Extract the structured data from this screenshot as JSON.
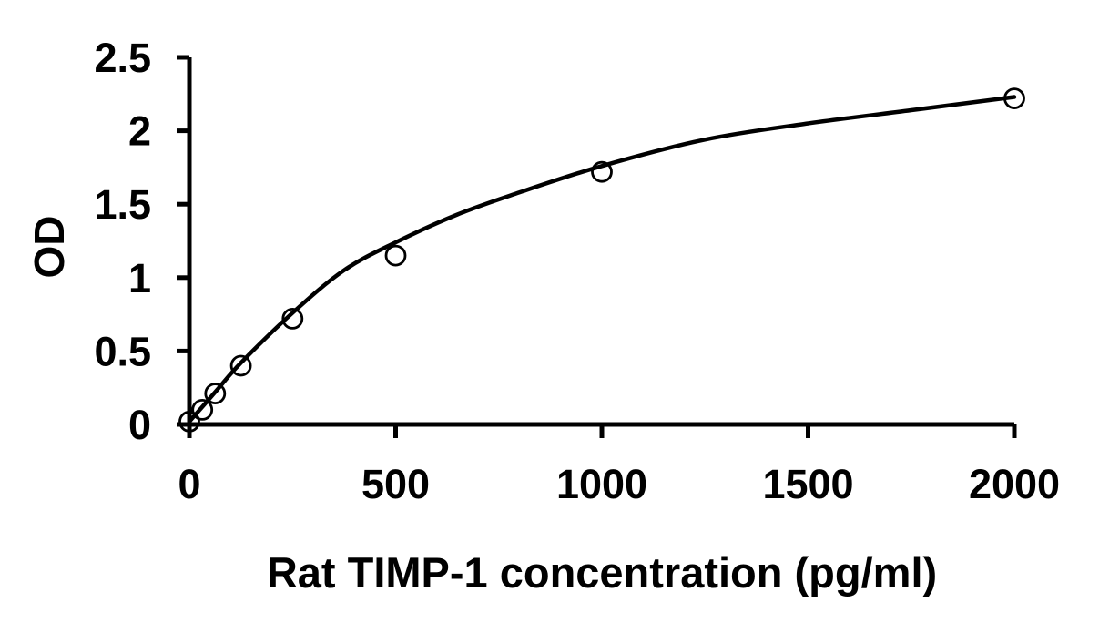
{
  "chart_data": {
    "type": "scatter",
    "title": "",
    "xlabel": "Rat TIMP-1 concentration (pg/ml)",
    "ylabel": "OD",
    "xlim": [
      0,
      2000
    ],
    "ylim": [
      0,
      2.5
    ],
    "x_ticks": [
      0,
      500,
      1000,
      1500,
      2000
    ],
    "x_tick_labels": [
      "0",
      "500",
      "1000",
      "1500",
      "2000"
    ],
    "y_ticks": [
      0,
      0.5,
      1,
      1.5,
      2,
      2.5
    ],
    "y_tick_labels": [
      "0",
      "0.5",
      "1",
      "1.5",
      "2",
      "2.5"
    ],
    "grid": false,
    "legend": "none",
    "series": [
      {
        "name": "standard-points",
        "type": "scatter",
        "marker": "open-circle",
        "x": [
          0,
          31.25,
          62.5,
          125,
          250,
          500,
          1000,
          2000
        ],
        "y": [
          0.02,
          0.1,
          0.21,
          0.4,
          0.72,
          1.15,
          1.72,
          2.22
        ]
      },
      {
        "name": "fitted-curve",
        "type": "line",
        "x": [
          0,
          62.5,
          125,
          250,
          375,
          500,
          650,
          800,
          1000,
          1250,
          1500,
          1750,
          2000
        ],
        "y": [
          0.02,
          0.22,
          0.42,
          0.76,
          1.05,
          1.24,
          1.43,
          1.58,
          1.76,
          1.94,
          2.05,
          2.14,
          2.23
        ]
      }
    ],
    "colors": {
      "line": "#000000",
      "marker_stroke": "#000000",
      "text": "#000000",
      "background": "#ffffff"
    }
  }
}
